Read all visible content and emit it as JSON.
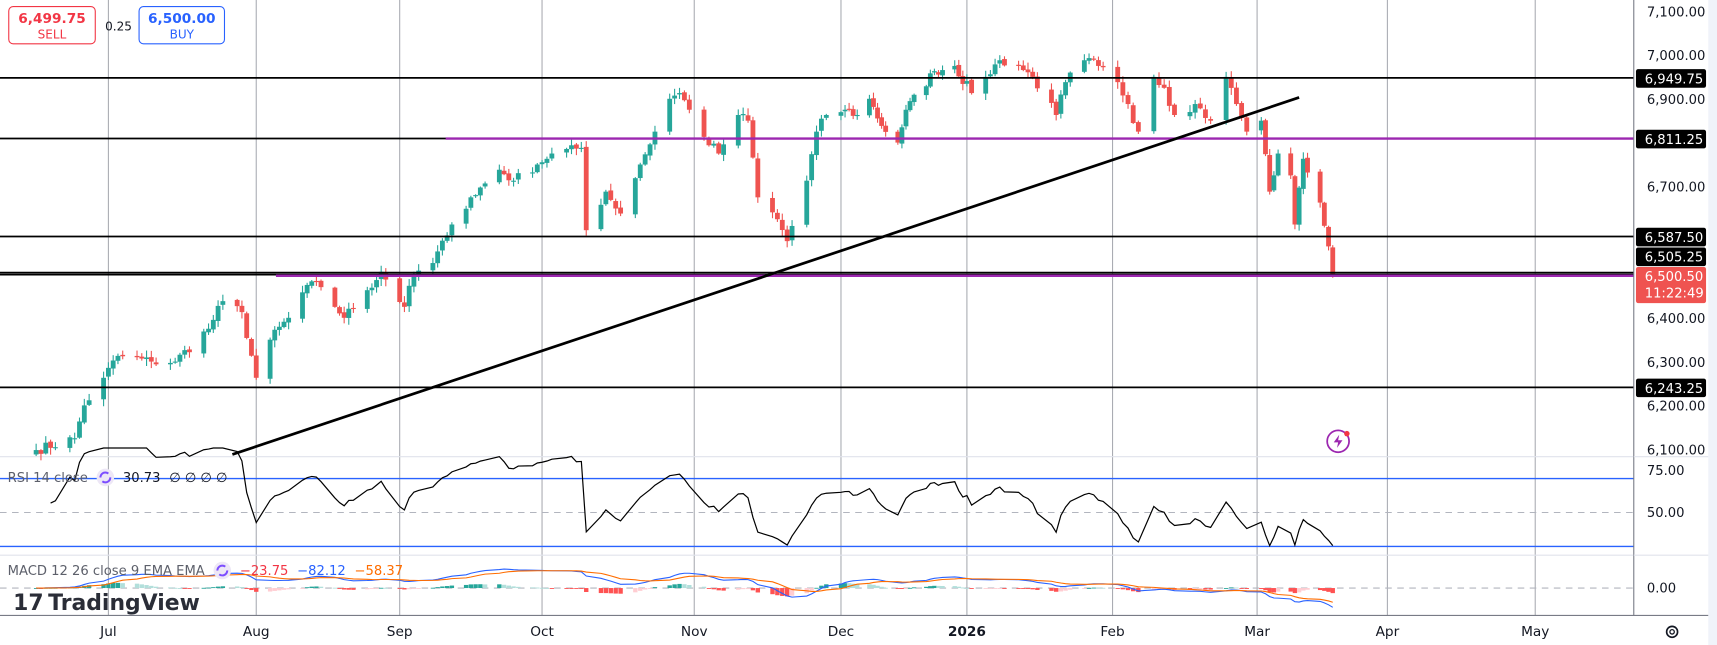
{
  "trade_panel": {
    "sell_price": "6,499.75",
    "sell_label": "SELL",
    "spread": "0.25",
    "buy_price": "6,500.00",
    "buy_label": "BUY"
  },
  "colors": {
    "up": "#26a69a",
    "down": "#ef5350",
    "sell": "#f23645",
    "buy": "#2962ff",
    "purple_line": "#9c27b0",
    "rsi_line": "#000000",
    "rsi_band": "#2962ff",
    "macd": "#2962ff",
    "signal": "#ff6d00"
  },
  "time_axis": [
    "Jul",
    "Aug",
    "Sep",
    "Oct",
    "Nov",
    "Dec",
    "2026",
    "Feb",
    "Mar",
    "Apr",
    "May"
  ],
  "price_axis": [
    "7,100.00",
    "7,000.00",
    "6,900.00",
    "6,700.00",
    "6,400.00",
    "6,300.00",
    "6,200.00",
    "6,100.00"
  ],
  "price_labels": {
    "l1": "6,949.75",
    "l2": "6,811.25",
    "l3": "6,587.50",
    "l4": "6,505.25",
    "last": "6,500.50",
    "countdown": "11:22:49",
    "l5": "6,243.25"
  },
  "rsi": {
    "title": "RSI 14 close",
    "value": "30.73",
    "na": "∅ ∅ ∅ ∅",
    "axis_top": "75.00",
    "axis_mid": "50.00"
  },
  "macd": {
    "title": "MACD 12 26 close 9 EMA EMA",
    "hist": "−23.75",
    "macd": "−82.12",
    "signal": "−58.37",
    "axis_zero": "0.00"
  },
  "branding": {
    "logo": "TradingView"
  },
  "chart_data": {
    "type": "candlestick",
    "ylim": [
      6100,
      7100
    ],
    "xlim": [
      "2025-06-16",
      "2026-05-15"
    ],
    "horizontal_levels": [
      {
        "price": 6949.75,
        "color": "#000000"
      },
      {
        "price": 6811.25,
        "color": "#9c27b0"
      },
      {
        "price": 6587.5,
        "color": "#000000"
      },
      {
        "price": 6505.25,
        "color": "#000000"
      },
      {
        "price": 6500.5,
        "color": "#9c27b0"
      },
      {
        "price": 6243.25,
        "color": "#000000"
      }
    ],
    "trendline": [
      {
        "date": "2025-07-27",
        "price": 6090
      },
      {
        "date": "2026-03-11",
        "price": 6905
      }
    ],
    "close_path": [
      [
        "2025-06-16",
        6100
      ],
      [
        "2025-06-24",
        6127
      ],
      [
        "2025-06-26",
        6202
      ],
      [
        "2025-06-30",
        6265
      ],
      [
        "2025-07-03",
        6315
      ],
      [
        "2025-07-10",
        6302
      ],
      [
        "2025-07-15",
        6302
      ],
      [
        "2025-07-22",
        6377
      ],
      [
        "2025-07-25",
        6440
      ],
      [
        "2025-07-29",
        6415
      ],
      [
        "2025-08-01",
        6265
      ],
      [
        "2025-08-04",
        6352
      ],
      [
        "2025-08-08",
        6402
      ],
      [
        "2025-08-12",
        6477
      ],
      [
        "2025-08-15",
        6472
      ],
      [
        "2025-08-20",
        6402
      ],
      [
        "2025-08-25",
        6465
      ],
      [
        "2025-08-28",
        6507
      ],
      [
        "2025-09-02",
        6427
      ],
      [
        "2025-09-04",
        6502
      ],
      [
        "2025-09-08",
        6527
      ],
      [
        "2025-09-11",
        6590
      ],
      [
        "2025-09-12",
        6615
      ],
      [
        "2025-09-16",
        6677
      ],
      [
        "2025-09-22",
        6740
      ],
      [
        "2025-09-25",
        6715
      ],
      [
        "2025-09-30",
        6752
      ],
      [
        "2025-10-03",
        6777
      ],
      [
        "2025-10-09",
        6790
      ],
      [
        "2025-10-10",
        6602
      ],
      [
        "2025-10-14",
        6690
      ],
      [
        "2025-10-17",
        6640
      ],
      [
        "2025-10-21",
        6752
      ],
      [
        "2025-10-24",
        6827
      ],
      [
        "2025-10-27",
        6902
      ],
      [
        "2025-10-29",
        6915
      ],
      [
        "2025-10-31",
        6877
      ],
      [
        "2025-11-03",
        6815
      ],
      [
        "2025-11-06",
        6777
      ],
      [
        "2025-11-10",
        6865
      ],
      [
        "2025-11-12",
        6852
      ],
      [
        "2025-11-14",
        6677
      ],
      [
        "2025-11-18",
        6627
      ],
      [
        "2025-11-20",
        6577
      ],
      [
        "2025-11-24",
        6715
      ],
      [
        "2025-11-26",
        6827
      ],
      [
        "2025-11-28",
        6865
      ],
      [
        "2025-12-02",
        6877
      ],
      [
        "2025-12-05",
        6865
      ],
      [
        "2025-12-08",
        6902
      ],
      [
        "2025-12-11",
        6840
      ],
      [
        "2025-12-15",
        6802
      ],
      [
        "2025-12-17",
        6877
      ],
      [
        "2025-12-24",
        6965
      ],
      [
        "2025-12-29",
        6977
      ],
      [
        "2026-01-02",
        6915
      ],
      [
        "2026-01-05",
        6952
      ],
      [
        "2026-01-08",
        6990
      ],
      [
        "2026-01-12",
        6977
      ],
      [
        "2026-01-15",
        6952
      ],
      [
        "2026-01-20",
        6865
      ],
      [
        "2026-01-22",
        6940
      ],
      [
        "2026-01-26",
        6990
      ],
      [
        "2026-01-29",
        6977
      ],
      [
        "2026-02-02",
        6940
      ],
      [
        "2026-02-04",
        6890
      ],
      [
        "2026-02-06",
        6827
      ],
      [
        "2026-02-09",
        6952
      ],
      [
        "2026-02-11",
        6927
      ],
      [
        "2026-02-13",
        6865
      ],
      [
        "2026-02-17",
        6890
      ],
      [
        "2026-02-20",
        6852
      ],
      [
        "2026-02-23",
        6952
      ],
      [
        "2026-02-25",
        6890
      ],
      [
        "2026-02-27",
        6827
      ],
      [
        "2026-03-02",
        6852
      ],
      [
        "2026-03-04",
        6690
      ],
      [
        "2026-03-06",
        6777
      ],
      [
        "2026-03-09",
        6727
      ],
      [
        "2026-03-10",
        6615
      ],
      [
        "2026-03-12",
        6765
      ],
      [
        "2026-03-16",
        6665
      ],
      [
        "2026-03-18",
        6565
      ],
      [
        "2026-03-19",
        6500.5
      ]
    ],
    "rsi_levels": [
      70,
      50,
      30
    ],
    "macd_params": [
      12,
      26,
      9
    ]
  }
}
